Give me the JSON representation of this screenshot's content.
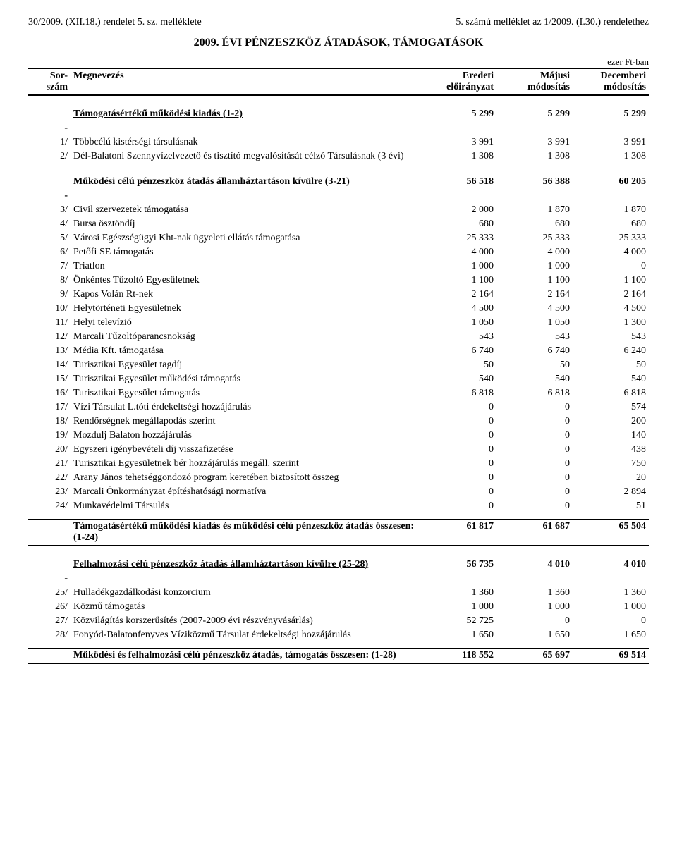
{
  "header": {
    "left": "30/2009. (XII.18.) rendelet 5. sz. melléklete",
    "right": "5. számú melléklet az 1/2009. (I.30.) rendelethez",
    "title": "2009. ÉVI PÉNZESZKÖZ ÁTADÁSOK, TÁMOGATÁSOK",
    "unit": "ezer Ft-ban"
  },
  "columns": {
    "sor1": "Sor-",
    "sor2": "szám",
    "name": "Megnevezés",
    "c1a": "Eredeti",
    "c1b": "előirányzat",
    "c2a": "Májusi",
    "c2b": "módosítás",
    "c3a": "Decemberi",
    "c3b": "módosítás"
  },
  "section1": {
    "title": "Támogatásértékű működési kiadás (1-2)",
    "v": [
      "5 299",
      "5 299",
      "5 299"
    ]
  },
  "s1rows": [
    {
      "sor": "1/",
      "name": "Többcélú kistérségi társulásnak",
      "v": [
        "3 991",
        "3 991",
        "3 991"
      ]
    },
    {
      "sor": "2/",
      "name": "Dél-Balatoni Szennyvízelvezető és tisztító megvalósítását célzó Társulásnak (3 évi)",
      "v": [
        "1 308",
        "1 308",
        "1 308"
      ]
    }
  ],
  "section2": {
    "title": "Működési célú pénzeszköz átadás államháztartáson kívülre (3-21)",
    "v": [
      "56 518",
      "56 388",
      "60 205"
    ]
  },
  "s2rows": [
    {
      "sor": "3/",
      "name": "Civil szervezetek támogatása",
      "v": [
        "2 000",
        "1 870",
        "1 870"
      ]
    },
    {
      "sor": "4/",
      "name": "Bursa ösztöndíj",
      "v": [
        "680",
        "680",
        "680"
      ]
    },
    {
      "sor": "5/",
      "name": "Városi Egészségügyi Kht-nak ügyeleti ellátás támogatása",
      "v": [
        "25 333",
        "25 333",
        "25 333"
      ]
    },
    {
      "sor": "6/",
      "name": "Petőfi SE támogatás",
      "v": [
        "4 000",
        "4 000",
        "4 000"
      ]
    },
    {
      "sor": "7/",
      "name": "Triatlon",
      "v": [
        "1 000",
        "1 000",
        "0"
      ]
    },
    {
      "sor": "8/",
      "name": "Önkéntes Tűzoltó Egyesületnek",
      "v": [
        "1 100",
        "1 100",
        "1 100"
      ]
    },
    {
      "sor": "9/",
      "name": "Kapos Volán Rt-nek",
      "v": [
        "2 164",
        "2 164",
        "2 164"
      ]
    },
    {
      "sor": "10/",
      "name": "Helytörténeti Egyesületnek",
      "v": [
        "4 500",
        "4 500",
        "4 500"
      ]
    },
    {
      "sor": "11/",
      "name": "Helyi televízió",
      "v": [
        "1 050",
        "1 050",
        "1 300"
      ]
    },
    {
      "sor": "12/",
      "name": "Marcali Tűzoltóparancsnokság",
      "v": [
        "543",
        "543",
        "543"
      ]
    },
    {
      "sor": "13/",
      "name": "Média Kft. támogatása",
      "v": [
        "6 740",
        "6 740",
        "6 240"
      ]
    },
    {
      "sor": "14/",
      "name": "Turisztikai Egyesület tagdíj",
      "v": [
        "50",
        "50",
        "50"
      ]
    },
    {
      "sor": "15/",
      "name": "Turisztikai Egyesület működési támogatás",
      "v": [
        "540",
        "540",
        "540"
      ]
    },
    {
      "sor": "16/",
      "name": "Turisztikai Egyesület támogatás",
      "v": [
        "6 818",
        "6 818",
        "6 818"
      ]
    },
    {
      "sor": "17/",
      "name": "Vízi Társulat L.tóti érdekeltségi hozzájárulás",
      "v": [
        "0",
        "0",
        "574"
      ]
    },
    {
      "sor": "18/",
      "name": "Rendőrségnek megállapodás szerint",
      "v": [
        "0",
        "0",
        "200"
      ]
    },
    {
      "sor": "19/",
      "name": "Mozdulj Balaton hozzájárulás",
      "v": [
        "0",
        "0",
        "140"
      ]
    },
    {
      "sor": "20/",
      "name": "Egyszeri igénybevételi díj visszafizetése",
      "v": [
        "0",
        "0",
        "438"
      ]
    },
    {
      "sor": "21/",
      "name": "Turisztikai Egyesületnek bér hozzájárulás megáll. szerint",
      "v": [
        "0",
        "0",
        "750"
      ]
    },
    {
      "sor": "22/",
      "name": "Arany János tehetséggondozó program keretében biztosított összeg",
      "v": [
        "0",
        "0",
        "20"
      ]
    },
    {
      "sor": "23/",
      "name": "Marcali Önkormányzat építéshatósági normatíva",
      "v": [
        "0",
        "0",
        "2 894"
      ]
    },
    {
      "sor": "24/",
      "name": "Munkavédelmi Társulás",
      "v": [
        "0",
        "0",
        "51"
      ]
    }
  ],
  "subtotal1": {
    "title": "Támogatásértékű működési kiadás és működési célú pénzeszköz átadás összesen: (1-24)",
    "v": [
      "61 817",
      "61 687",
      "65 504"
    ]
  },
  "section3": {
    "title": "Felhalmozási célú pénzeszköz átadás államháztartáson kívülre (25-28)",
    "v": [
      "56 735",
      "4 010",
      "4 010"
    ]
  },
  "s3rows": [
    {
      "sor": "25/",
      "name": "Hulladékgazdálkodási konzorcium",
      "v": [
        "1 360",
        "1 360",
        "1 360"
      ]
    },
    {
      "sor": "26/",
      "name": "Közmű támogatás",
      "v": [
        "1 000",
        "1 000",
        "1 000"
      ]
    },
    {
      "sor": "27/",
      "name": "Közvilágítás korszerűsítés (2007-2009 évi részvényvásárlás)",
      "v": [
        "52 725",
        "0",
        "0"
      ]
    },
    {
      "sor": "28/",
      "name": "Fonyód-Balatonfenyves Víziközmű Társulat érdekeltségi hozzájárulás",
      "v": [
        "1 650",
        "1 650",
        "1 650"
      ]
    }
  ],
  "total": {
    "title": "Működési és felhalmozási célú pénzeszköz átadás, támogatás összesen: (1-28)",
    "v": [
      "118 552",
      "65 697",
      "69 514"
    ]
  }
}
